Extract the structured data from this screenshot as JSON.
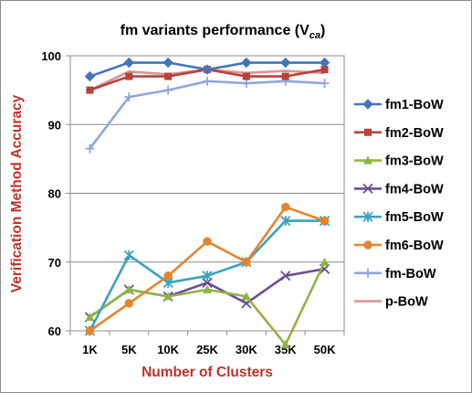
{
  "chart_data": {
    "type": "line",
    "title": "fm variants performance (V",
    "title_subscript": "ca",
    "title_close": ")",
    "xlabel": "Number of Clusters",
    "ylabel": "Verification Method Accuracy",
    "label_color": "#c0302a",
    "categories": [
      "1K",
      "5K",
      "10K",
      "25K",
      "30K",
      "35K",
      "50K"
    ],
    "ylim": [
      60,
      100
    ],
    "yticks": [
      60,
      70,
      80,
      90,
      100
    ],
    "grid": true,
    "legend_position": "right",
    "series": [
      {
        "name": "fm1-BoW",
        "color": "#4674b9",
        "marker": "diamond",
        "values": [
          97,
          99,
          99,
          98,
          99,
          99,
          99
        ]
      },
      {
        "name": "fm2-BoW",
        "color": "#b9413c",
        "marker": "square",
        "values": [
          95,
          97,
          97,
          98,
          97,
          97,
          98
        ]
      },
      {
        "name": "fm3-BoW",
        "color": "#8fb445",
        "marker": "triangle",
        "values": [
          62,
          66,
          65,
          66,
          65,
          58,
          70
        ]
      },
      {
        "name": "fm4-BoW",
        "color": "#6b4f93",
        "marker": "x",
        "values": [
          62,
          66,
          65,
          67,
          64,
          68,
          69
        ]
      },
      {
        "name": "fm5-BoW",
        "color": "#3ba2bd",
        "marker": "asterisk",
        "values": [
          60,
          71,
          67,
          68,
          70,
          76,
          76
        ]
      },
      {
        "name": "fm6-BoW",
        "color": "#e5842e",
        "marker": "circle",
        "values": [
          60,
          64,
          68,
          73,
          70,
          78,
          76
        ]
      },
      {
        "name": "fm-BoW",
        "color": "#8ea7da",
        "marker": "plus",
        "values": [
          86.5,
          94,
          95,
          96.3,
          96,
          96.3,
          96
        ]
      },
      {
        "name": "p-BoW",
        "color": "#d89594",
        "marker": "none",
        "values": [
          95,
          97.7,
          97.3,
          98,
          97.5,
          97.8,
          97.5
        ]
      }
    ]
  }
}
